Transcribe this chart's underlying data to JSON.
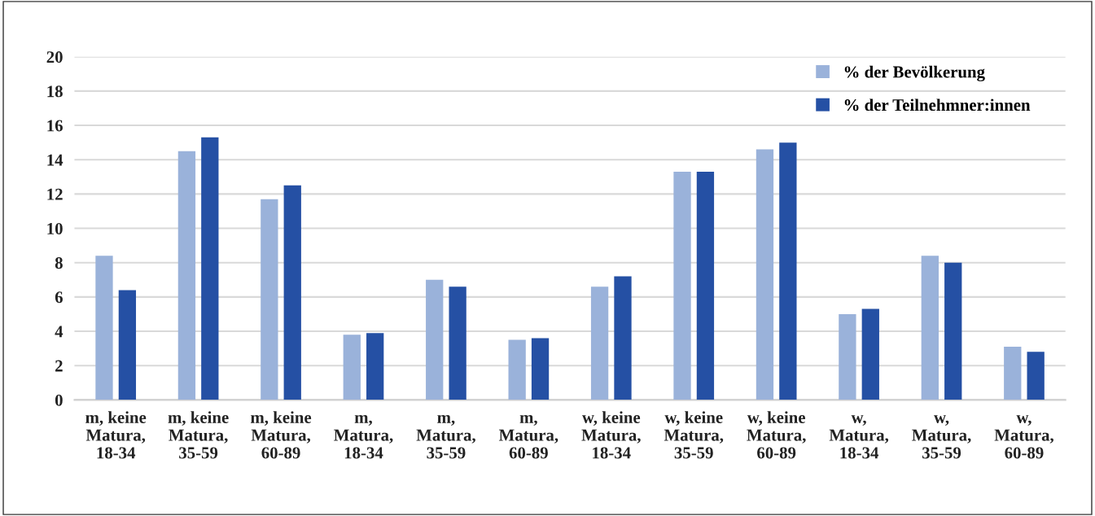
{
  "chart_data": {
    "type": "bar",
    "categories": [
      "m, keine\nMatura,\n18-34",
      "m, keine\nMatura,\n35-59",
      "m, keine\nMatura,\n60-89",
      "m,\nMatura,\n18-34",
      "m,\nMatura,\n35-59",
      "m,\nMatura,\n60-89",
      "w, keine\nMatura,\n18-34",
      "w, keine\nMatura,\n35-59",
      "w, keine\nMatura,\n60-89",
      "w,\nMatura,\n18-34",
      "w,\nMatura,\n35-59",
      "w,\nMatura,\n60-89"
    ],
    "series": [
      {
        "name": "% der Bevölkerung",
        "color": "#9ab2da",
        "values": [
          8.4,
          14.5,
          11.7,
          3.8,
          7.0,
          3.5,
          6.6,
          13.3,
          14.6,
          5.0,
          8.4,
          3.1
        ]
      },
      {
        "name": "% der Teilnehmner:innen",
        "color": "#2550a4",
        "values": [
          6.4,
          15.3,
          12.5,
          3.9,
          6.6,
          3.6,
          7.2,
          13.3,
          15.0,
          5.3,
          8.0,
          2.8
        ]
      }
    ],
    "ylim": [
      0,
      20
    ],
    "yticks": [
      0,
      2,
      4,
      6,
      8,
      10,
      12,
      14,
      16,
      18,
      20
    ],
    "grid": "y",
    "legend": "top right"
  }
}
